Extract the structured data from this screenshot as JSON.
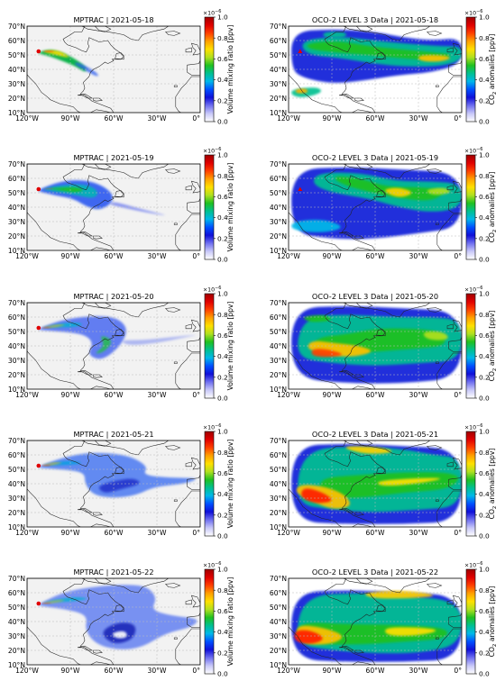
{
  "figure": {
    "panels": [
      {
        "title": "MPTRAC | 2021-05-18",
        "kind": "mptrac"
      },
      {
        "title": "OCO-2 LEVEL 3 Data | 2021-05-18",
        "kind": "oco2"
      },
      {
        "title": "MPTRAC | 2021-05-19",
        "kind": "mptrac"
      },
      {
        "title": "OCO-2 LEVEL 3 Data | 2021-05-19",
        "kind": "oco2"
      },
      {
        "title": "MPTRAC | 2021-05-20",
        "kind": "mptrac"
      },
      {
        "title": "OCO-2 LEVEL 3 Data | 2021-05-20",
        "kind": "oco2"
      },
      {
        "title": "MPTRAC | 2021-05-21",
        "kind": "mptrac"
      },
      {
        "title": "OCO-2 LEVEL 3 Data | 2021-05-21",
        "kind": "oco2"
      },
      {
        "title": "MPTRAC | 2021-05-22",
        "kind": "mptrac"
      },
      {
        "title": "OCO-2 LEVEL 3 Data | 2021-05-22",
        "kind": "oco2"
      }
    ],
    "lat_ticks": [
      "10°N",
      "20°N",
      "30°N",
      "40°N",
      "50°N",
      "60°N",
      "70°N"
    ],
    "lon_ticks": [
      "120°W",
      "90°W",
      "60°W",
      "30°W",
      "0°"
    ],
    "lon_extent": [
      -120,
      0
    ],
    "lat_extent": [
      10,
      70
    ],
    "colorbar": {
      "ticks": [
        "0.0",
        "0.2",
        "0.4",
        "0.6",
        "0.8",
        "1.0"
      ],
      "range": [
        0,
        1
      ],
      "multiplier": "×10",
      "exponent": "−6",
      "mptrac_label": "Volume mixing ratio [ppv]",
      "oco2_label_prefix": "CO",
      "oco2_label_sub": "2",
      "oco2_label_suffix": " anomalies [ppv]",
      "colormap": [
        "#ffffff",
        "#c8c8f8",
        "#7070f0",
        "#1010d8",
        "#0050ff",
        "#00b8e8",
        "#00c090",
        "#20c020",
        "#b0e020",
        "#ffe000",
        "#ffa000",
        "#ff4000",
        "#e00000",
        "#a00000"
      ]
    },
    "colors": {
      "land": "#f2f2f2",
      "coast": "#222222",
      "grid": "#bbbbbb",
      "source_marker": "#e00000"
    }
  }
}
